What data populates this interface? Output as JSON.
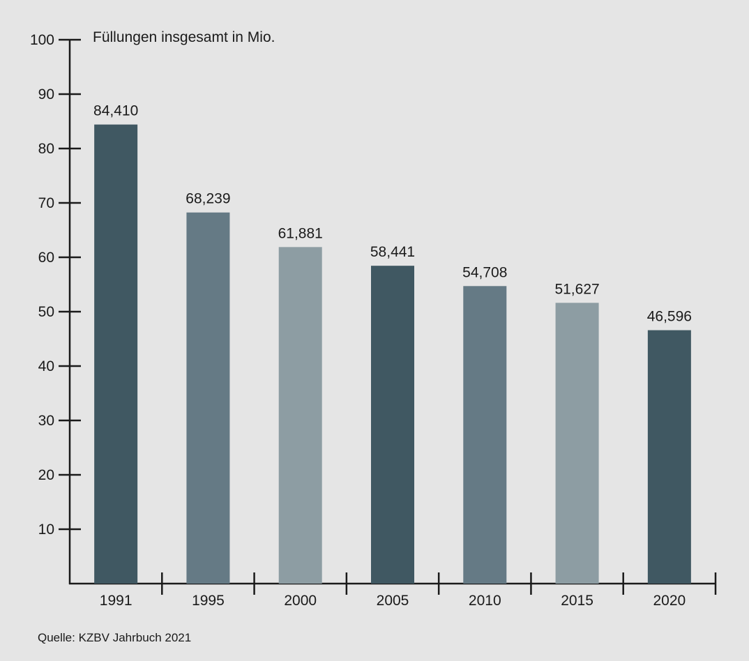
{
  "chart_data": {
    "type": "bar",
    "title": "Füllungen insgesamt in Mio.",
    "xlabel": "",
    "ylabel": "Füllungen insgesamt in Mio.",
    "categories": [
      "1991",
      "1995",
      "2000",
      "2005",
      "2010",
      "2015",
      "2020"
    ],
    "values": [
      84.41,
      68.239,
      61.881,
      58.441,
      54.708,
      51.627,
      46.596
    ],
    "value_labels": [
      "84,410",
      "68,239",
      "61,881",
      "58,441",
      "54,708",
      "51,627",
      "46,596"
    ],
    "ylim": [
      0,
      100
    ],
    "yticks": [
      10,
      20,
      30,
      40,
      50,
      60,
      70,
      80,
      90,
      100
    ],
    "ytick_labels": [
      "10",
      "20",
      "30",
      "40",
      "50",
      "60",
      "70",
      "80",
      "90",
      "100"
    ],
    "grid": false,
    "bar_colors": [
      "#405862",
      "#657a85",
      "#8d9da3",
      "#405862",
      "#657a85",
      "#8d9da3",
      "#405862"
    ],
    "background": "#e5e5e5",
    "source": "Quelle: KZBV Jahrbuch 2021"
  }
}
